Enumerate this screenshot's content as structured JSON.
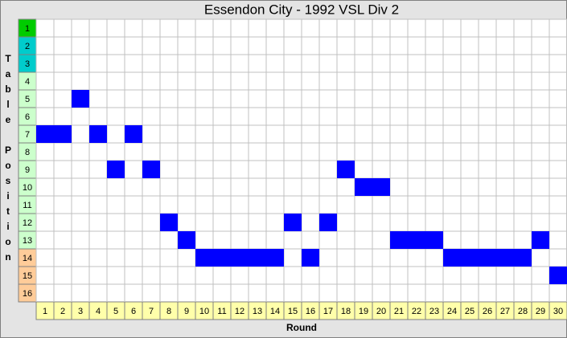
{
  "chart_data": {
    "type": "position",
    "title": "Essendon City - 1992 VSL Div 2",
    "x_label": "Round",
    "y_label": "Table Position",
    "x": [
      1,
      2,
      3,
      4,
      5,
      6,
      7,
      8,
      9,
      10,
      11,
      12,
      13,
      14,
      15,
      16,
      17,
      18,
      19,
      20,
      21,
      22,
      23,
      24,
      25,
      26,
      27,
      28,
      29,
      30
    ],
    "values": [
      7,
      7,
      5,
      7,
      9,
      7,
      9,
      12,
      13,
      14,
      14,
      14,
      14,
      14,
      12,
      14,
      12,
      9,
      10,
      10,
      13,
      13,
      13,
      14,
      14,
      14,
      14,
      14,
      13,
      15
    ],
    "yticks": [
      1,
      2,
      3,
      4,
      5,
      6,
      7,
      8,
      9,
      10,
      11,
      12,
      13,
      14,
      15,
      16
    ],
    "ylim": [
      1,
      16
    ],
    "y_inverted": true,
    "grid": true,
    "color": "#0000ff",
    "x_label_color": "#ffffaa",
    "ytick_colors": [
      "#00cc00",
      "#00cccc",
      "#00cccc",
      "#ccffcc",
      "#ccffcc",
      "#ccffcc",
      "#ccffcc",
      "#ccffcc",
      "#ccffcc",
      "#ccffcc",
      "#ccffcc",
      "#ccffcc",
      "#ccffcc",
      "#ffcc99",
      "#ffcc99",
      "#ffcc99"
    ]
  }
}
